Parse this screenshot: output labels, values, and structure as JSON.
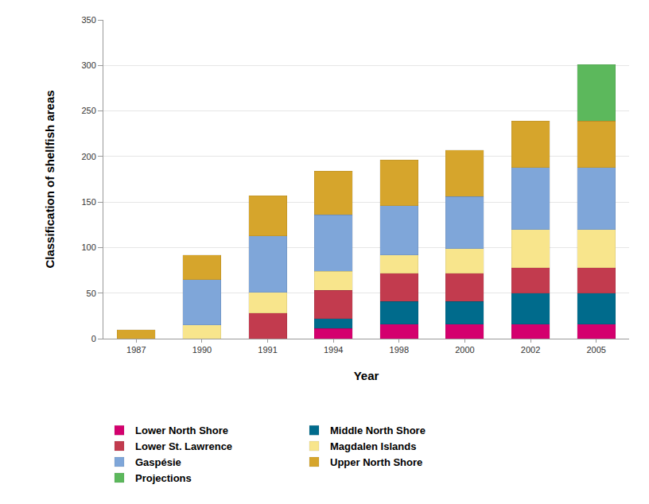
{
  "chart_data": {
    "type": "bar",
    "stacked": true,
    "x_label": "Year",
    "y_label": "Classification of shellfish areas",
    "categories": [
      "1987",
      "1990",
      "1991",
      "1994",
      "1998",
      "2000",
      "2002",
      "2005"
    ],
    "series": [
      {
        "name": "Lower North Shore",
        "color": "#d4006e",
        "values": [
          null,
          null,
          null,
          11,
          16,
          16,
          16,
          16
        ]
      },
      {
        "name": "Middle North Shore",
        "color": "#006b8c",
        "values": [
          null,
          null,
          null,
          11,
          25,
          25,
          34,
          34
        ]
      },
      {
        "name": "Lower St. Lawrence",
        "color": "#c23b4e",
        "values": [
          null,
          null,
          28,
          31,
          31,
          31,
          28,
          28
        ]
      },
      {
        "name": "Magdalen Islands",
        "color": "#f8e58c",
        "values": [
          null,
          15,
          23,
          21,
          20,
          27,
          42,
          42
        ]
      },
      {
        "name": "Gaspésie",
        "color": "#7fa6d9",
        "values": [
          null,
          50,
          62,
          62,
          54,
          57,
          68,
          68
        ]
      },
      {
        "name": "Upper North Shore",
        "color": "#d6a52c",
        "values": [
          10,
          27,
          44,
          48,
          50,
          51,
          51,
          51
        ]
      },
      {
        "name": "Projections",
        "color": "#5cb85c",
        "values": [
          null,
          null,
          null,
          null,
          null,
          null,
          null,
          62
        ]
      }
    ],
    "ylim": [
      0,
      350
    ],
    "yticks": [
      0,
      50,
      100,
      150,
      200,
      250,
      300,
      350
    ],
    "grid": true,
    "legend": "bottom"
  }
}
